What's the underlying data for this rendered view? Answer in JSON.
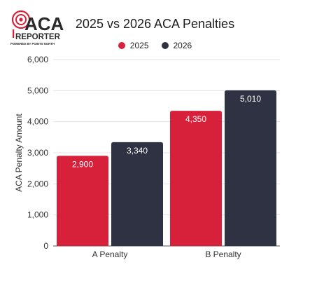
{
  "logo": {
    "line1": "ACA",
    "line2": "REPORTER",
    "tagline": "POWERED BY POINTS NORTH"
  },
  "colors": {
    "series_2025": "#d7203a",
    "series_2026": "#2f3242",
    "gridline": "#e3e3e3",
    "axis": "#555555"
  },
  "chart_data": {
    "type": "bar",
    "title": "2025 vs 2026 ACA Penalties",
    "xlabel": "",
    "ylabel": "ACA Penalty Amount",
    "categories": [
      "A Penalty",
      "B Penalty"
    ],
    "series": [
      {
        "name": "2025",
        "values": [
          2900,
          4350
        ],
        "labels": [
          "2,900",
          "4,350"
        ]
      },
      {
        "name": "2026",
        "values": [
          3340,
          5010
        ],
        "labels": [
          "3,340",
          "5,010"
        ]
      }
    ],
    "ylim": [
      0,
      6000
    ],
    "yticks": [
      0,
      1000,
      2000,
      3000,
      4000,
      5000,
      6000
    ],
    "ytick_labels": [
      "0",
      "1,000",
      "2,000",
      "3,000",
      "4,000",
      "5,000",
      "6,000"
    ],
    "grid": true,
    "legend_position": "top-center"
  }
}
